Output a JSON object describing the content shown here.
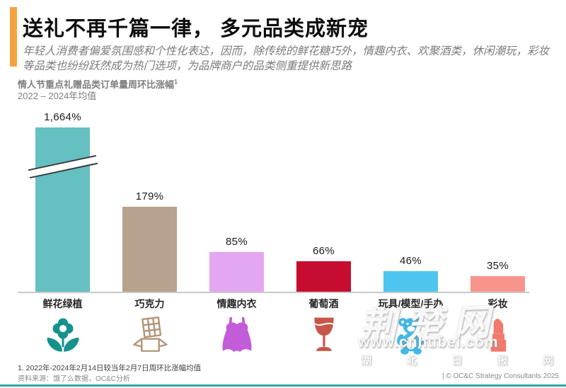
{
  "header": {
    "title": "送礼不再千篇一律， 多元品类成新宠",
    "description": "年轻人消费者偏爱氛围感和个性化表达，因而，除传统的鲜花糖巧外，情趣内衣、欢聚酒类，休闲潮玩，彩妆等品类也纷纷跃然成为热门选项，为品牌商户的品类侧重提供新思路",
    "accent_color": "#F6A23C"
  },
  "chart": {
    "title": "情人节重点礼赠品类订单量周环比涨幅",
    "superscript": "1",
    "subtitle": "2022 – 2024年均值"
  },
  "chart_data": {
    "type": "bar",
    "title": "情人节重点礼赠品类订单量周环比涨幅¹",
    "subtitle": "2022 – 2024年均值",
    "categories": [
      "鲜花绿植",
      "巧克力",
      "情趣内衣",
      "葡萄酒",
      "玩具/模型/手办",
      "彩妆"
    ],
    "values": [
      1664,
      179,
      85,
      66,
      46,
      35
    ],
    "value_labels": [
      "1,664%",
      "179%",
      "85%",
      "66%",
      "46%",
      "35%"
    ],
    "unit": "%",
    "bar_colors": [
      "#64C0C1",
      "#B7A28E",
      "#E3A6F0",
      "#C60C2F",
      "#4DC5EF",
      "#F7958D"
    ],
    "icon_names": [
      "flower-icon",
      "chocolate-icon",
      "lingerie-icon",
      "wine-glass-icon",
      "teddy-bear-icon",
      "lipstick-icon"
    ],
    "icon_colors": [
      "#16918C",
      "#B29577",
      "#C35CD9",
      "#C85648",
      "#3FB8E9",
      "#F17A6F"
    ],
    "axis_break": {
      "category": "鲜花绿植",
      "note": "y轴断裂，首柱截断显示"
    },
    "grid": false,
    "legend": false,
    "axis_color": "#C9C9C9"
  },
  "watermark": {
    "brand": "荆楚网",
    "url": "www.cnhubei.com",
    "caption_chars": [
      "湖",
      "北",
      "日",
      "报",
      "网"
    ]
  },
  "footer": {
    "note": "1. 2022年-2024年2月14日较当年2月7日周环比涨幅均值",
    "source": "资料来源：饿了么数据，OC&C分析",
    "copyright": "| © OC&C Strategy Consultants 2025",
    "rule_color": "#33A7A9"
  }
}
